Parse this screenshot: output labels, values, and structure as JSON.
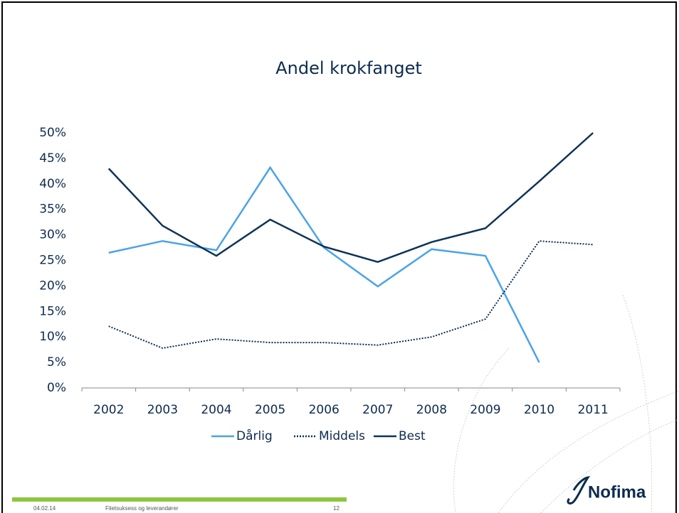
{
  "chart_data": {
    "type": "line",
    "title": "Andel krokfanget",
    "categories": [
      "2002",
      "2003",
      "2004",
      "2005",
      "2006",
      "2007",
      "2008",
      "2009",
      "2010",
      "2011"
    ],
    "series": [
      {
        "name": "Dårlig",
        "color": "#4aa3e8",
        "style": "solid",
        "values": [
          26.5,
          28.8,
          27.0,
          43.2,
          27.5,
          19.9,
          27.2,
          25.9,
          5.0,
          null
        ]
      },
      {
        "name": "Middels",
        "color": "#0d2b4e",
        "style": "dotted",
        "values": [
          12.1,
          7.8,
          9.6,
          8.9,
          8.9,
          8.4,
          10.0,
          13.5,
          28.8,
          28.1
        ]
      },
      {
        "name": "Best",
        "color": "#0d3358",
        "style": "solid",
        "values": [
          43.0,
          31.8,
          25.9,
          33.0,
          27.7,
          24.7,
          28.6,
          31.3,
          40.5,
          50.0
        ]
      }
    ],
    "ylim": [
      0,
      50
    ],
    "yticks": [
      {
        "value": 0,
        "label": "0%"
      },
      {
        "value": 5,
        "label": "5%"
      },
      {
        "value": 10,
        "label": "10%"
      },
      {
        "value": 15,
        "label": "15%"
      },
      {
        "value": 20,
        "label": "20%"
      },
      {
        "value": 25,
        "label": "25%"
      },
      {
        "value": 30,
        "label": "30%"
      },
      {
        "value": 35,
        "label": "35%"
      },
      {
        "value": 40,
        "label": "40%"
      },
      {
        "value": 45,
        "label": "45%"
      },
      {
        "value": 50,
        "label": "50%"
      }
    ],
    "grid": false,
    "legend": "bottom"
  },
  "footer": {
    "date": "04.02.14",
    "text": "Filetsuksess og leverandører",
    "page": "12",
    "logo": "Nofima"
  }
}
